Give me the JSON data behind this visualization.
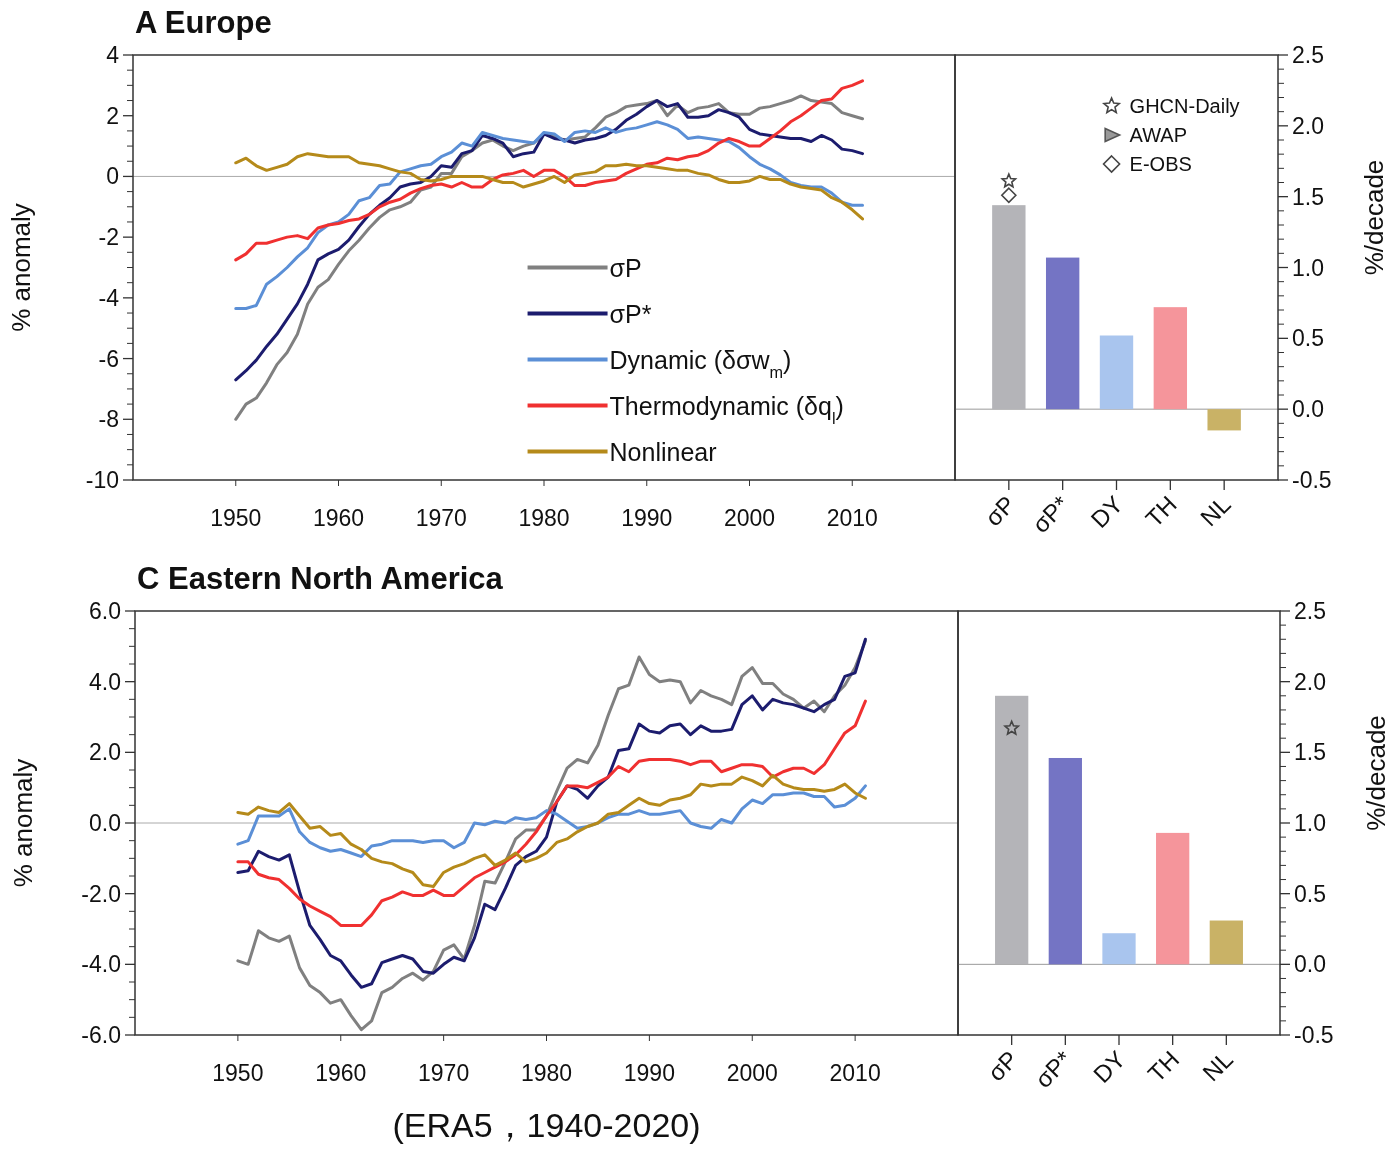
{
  "chart_data": [
    {
      "type": "line",
      "title": "A Europe",
      "ylabel": "% anomaly",
      "xlim": [
        1940,
        2020
      ],
      "xticks": [
        1950,
        1960,
        1970,
        1980,
        1990,
        2000,
        2010
      ],
      "ylim": [
        -10,
        4
      ],
      "yticks": [
        4,
        2,
        0,
        -2,
        -4,
        -6,
        -8,
        -10
      ],
      "legend": "bottom",
      "ref_lines": [
        {
          "axis": "y",
          "value": 0,
          "color": "#aaaaaa"
        }
      ],
      "x": [
        1950,
        1951,
        1952,
        1953,
        1954,
        1955,
        1956,
        1957,
        1958,
        1959,
        1960,
        1961,
        1962,
        1963,
        1964,
        1965,
        1966,
        1967,
        1968,
        1969,
        1970,
        1971,
        1972,
        1973,
        1974,
        1975,
        1976,
        1977,
        1978,
        1979,
        1980,
        1981,
        1982,
        1983,
        1984,
        1985,
        1986,
        1987,
        1988,
        1989,
        1990,
        1991,
        1992,
        1993,
        1994,
        1995,
        1996,
        1997,
        1998,
        1999,
        2000,
        2001,
        2002,
        2003,
        2004,
        2005,
        2006,
        2007,
        2008,
        2009,
        2010,
        2011
      ],
      "series": [
        {
          "name": "σP",
          "color": "#808080",
          "values": [
            -8.0,
            -7.5,
            -7.3,
            -6.8,
            -6.2,
            -5.8,
            -5.2,
            -4.2,
            -3.65,
            -3.4,
            -2.9,
            -2.45,
            -2.1,
            -1.7,
            -1.35,
            -1.1,
            -1.0,
            -0.85,
            -0.45,
            -0.35,
            0.1,
            0.1,
            0.65,
            0.85,
            1.1,
            1.2,
            1.0,
            0.85,
            1.0,
            1.1,
            1.4,
            1.3,
            1.2,
            1.25,
            1.3,
            1.6,
            1.95,
            2.1,
            2.3,
            2.35,
            2.4,
            2.5,
            2.0,
            2.35,
            2.1,
            2.25,
            2.3,
            2.4,
            2.1,
            2.05,
            2.05,
            2.25,
            2.3,
            2.4,
            2.5,
            2.65,
            2.5,
            2.45,
            2.4,
            2.1,
            2.0,
            1.9
          ]
        },
        {
          "name": "σP*",
          "color": "#1c1c6e",
          "values": [
            -6.7,
            -6.4,
            -6.05,
            -5.6,
            -5.2,
            -4.7,
            -4.2,
            -3.55,
            -2.75,
            -2.55,
            -2.4,
            -2.1,
            -1.65,
            -1.25,
            -0.95,
            -0.7,
            -0.35,
            -0.25,
            -0.2,
            0,
            0.35,
            0.3,
            0.75,
            0.85,
            1.35,
            1.25,
            1.1,
            0.65,
            0.75,
            0.8,
            1.4,
            1.25,
            1.2,
            1.1,
            1.2,
            1.25,
            1.35,
            1.55,
            1.85,
            2.05,
            2.3,
            2.5,
            2.3,
            2.4,
            1.95,
            1.95,
            2.0,
            2.2,
            2.1,
            1.95,
            1.55,
            1.4,
            1.35,
            1.3,
            1.25,
            1.25,
            1.15,
            1.35,
            1.2,
            0.9,
            0.85,
            0.75
          ]
        },
        {
          "name": "Dynamic (δσw$_{m}$)",
          "color": "#5b8fd6",
          "values": [
            -4.35,
            -4.35,
            -4.25,
            -3.55,
            -3.3,
            -3.0,
            -2.65,
            -2.35,
            -1.85,
            -1.6,
            -1.5,
            -1.25,
            -0.8,
            -0.7,
            -0.3,
            -0.25,
            0.15,
            0.25,
            0.35,
            0.4,
            0.65,
            0.8,
            1.1,
            1.0,
            1.45,
            1.35,
            1.25,
            1.2,
            1.15,
            1.1,
            1.45,
            1.4,
            1.15,
            1.45,
            1.5,
            1.45,
            1.6,
            1.45,
            1.55,
            1.6,
            1.7,
            1.8,
            1.7,
            1.55,
            1.25,
            1.3,
            1.25,
            1.2,
            1.15,
            0.95,
            0.65,
            0.4,
            0.25,
            0.05,
            -0.2,
            -0.3,
            -0.35,
            -0.35,
            -0.55,
            -0.85,
            -0.95,
            -0.95
          ]
        },
        {
          "name": "Thermodynamic (δq$_{l}$)",
          "color": "#f03030",
          "values": [
            -2.75,
            -2.55,
            -2.2,
            -2.2,
            -2.1,
            -2.0,
            -1.95,
            -2.05,
            -1.7,
            -1.6,
            -1.55,
            -1.45,
            -1.4,
            -1.25,
            -1.0,
            -0.85,
            -0.75,
            -0.55,
            -0.4,
            -0.3,
            -0.25,
            -0.35,
            -0.2,
            -0.35,
            -0.35,
            -0.1,
            0.05,
            0.1,
            0.2,
            0,
            0.2,
            0.2,
            0,
            -0.3,
            -0.3,
            -0.2,
            -0.15,
            -0.1,
            0.1,
            0.25,
            0.4,
            0.45,
            0.6,
            0.55,
            0.65,
            0.7,
            0.85,
            1.1,
            1.25,
            1.15,
            1.0,
            1.0,
            1.25,
            1.5,
            1.8,
            2.0,
            2.25,
            2.5,
            2.55,
            2.9,
            3.0,
            3.15
          ]
        },
        {
          "name": "Nonlinear",
          "color": "#b58a1a",
          "values": [
            0.45,
            0.6,
            0.35,
            0.2,
            0.3,
            0.4,
            0.65,
            0.75,
            0.7,
            0.65,
            0.65,
            0.65,
            0.45,
            0.4,
            0.35,
            0.25,
            0.15,
            0.1,
            -0.1,
            -0.15,
            -0.1,
            0,
            0,
            0,
            0,
            -0.1,
            -0.2,
            -0.2,
            -0.35,
            -0.25,
            -0.15,
            0,
            -0.2,
            0.05,
            0.1,
            0.15,
            0.35,
            0.35,
            0.4,
            0.35,
            0.35,
            0.3,
            0.25,
            0.2,
            0.2,
            0.1,
            0.05,
            -0.1,
            -0.2,
            -0.2,
            -0.15,
            0,
            -0.1,
            -0.1,
            -0.25,
            -0.35,
            -0.4,
            -0.45,
            -0.7,
            -0.85,
            -1.1,
            -1.4
          ]
        }
      ]
    },
    {
      "type": "bar",
      "categories": [
        "σP",
        "σP*",
        "DY",
        "TH",
        "NL"
      ],
      "y2lim": [
        -0.5,
        2.5
      ],
      "y2ticks": [
        {
          "value": 2.5,
          "label": "2.5"
        },
        {
          "value": 2,
          "label": "2.0"
        },
        {
          "value": 1.5,
          "label": "1.5"
        },
        {
          "value": 1,
          "label": "1.0"
        },
        {
          "value": 0.5,
          "label": "0.5"
        },
        {
          "value": 0,
          "label": "0.0"
        },
        {
          "value": -0.5,
          "label": "-0.5"
        }
      ],
      "y2label": "%/decade",
      "legend": "top right",
      "ref_lines": [
        {
          "axis": "y2",
          "value": 0,
          "color": "#999999"
        }
      ],
      "series": [
        {
          "axis": "y2",
          "values": [
            1.44,
            1.07,
            0.52,
            0.72,
            -0.15
          ],
          "colors": [
            "#b4b4b8",
            "#7474c4",
            "#a9c5ee",
            "#f5959b",
            "#c9b266"
          ]
        },
        {
          "type": "scatter",
          "name": "GHCN-Daily",
          "axis": "y2",
          "marker": "star",
          "color": "#444444",
          "x": [
            "σP"
          ],
          "values": [
            1.61
          ]
        },
        {
          "type": "scatter",
          "name": "AWAP",
          "axis": "y2",
          "marker": "triangle",
          "color": "#555555",
          "values": [
            null,
            null,
            null,
            null,
            null
          ]
        },
        {
          "type": "scatter",
          "name": "E-OBS",
          "axis": "y2",
          "marker": "diamond",
          "color": "#444444",
          "x": [
            "σP"
          ],
          "values": [
            1.51
          ]
        }
      ]
    },
    {
      "type": "line",
      "title": "C Eastern North America",
      "ylabel": "% anomaly",
      "xlim": [
        1940,
        2020
      ],
      "xticks": [
        1950,
        1960,
        1970,
        1980,
        1990,
        2000,
        2010
      ],
      "ylim": [
        -6,
        6
      ],
      "yticks": [
        {
          "value": 6,
          "label": "6.0"
        },
        {
          "value": 4,
          "label": "4.0"
        },
        {
          "value": 2,
          "label": "2.0"
        },
        {
          "value": 0,
          "label": "0.0"
        },
        {
          "value": -2,
          "label": "-2.0"
        },
        {
          "value": -4,
          "label": "-4.0"
        },
        {
          "value": -6,
          "label": "-6.0"
        }
      ],
      "annotations": [
        "(ERA5，1940-2020)"
      ],
      "ref_lines": [
        {
          "axis": "y",
          "value": 0,
          "color": "#aaaaaa"
        }
      ],
      "x": [
        1950,
        1951,
        1952,
        1953,
        1954,
        1955,
        1956,
        1957,
        1958,
        1959,
        1960,
        1961,
        1962,
        1963,
        1964,
        1965,
        1966,
        1967,
        1968,
        1969,
        1970,
        1971,
        1972,
        1973,
        1974,
        1975,
        1976,
        1977,
        1978,
        1979,
        1980,
        1981,
        1982,
        1983,
        1984,
        1985,
        1986,
        1987,
        1988,
        1989,
        1990,
        1991,
        1992,
        1993,
        1994,
        1995,
        1996,
        1997,
        1998,
        1999,
        2000,
        2001,
        2002,
        2003,
        2004,
        2005,
        2006,
        2007,
        2008,
        2009,
        2010,
        2011
      ],
      "series": [
        {
          "color": "#808080",
          "values": [
            -3.9,
            -4.0,
            -3.05,
            -3.25,
            -3.35,
            -3.2,
            -4.1,
            -4.6,
            -4.8,
            -5.1,
            -5.0,
            -5.45,
            -5.85,
            -5.6,
            -4.8,
            -4.65,
            -4.4,
            -4.25,
            -4.45,
            -4.2,
            -3.6,
            -3.45,
            -3.85,
            -2.9,
            -1.65,
            -1.7,
            -1.1,
            -0.45,
            -0.2,
            -0.2,
            0.2,
            0.9,
            1.55,
            1.8,
            1.7,
            2.2,
            3.05,
            3.8,
            3.9,
            4.7,
            4.2,
            4.0,
            4.05,
            4.0,
            3.4,
            3.75,
            3.6,
            3.5,
            3.35,
            4.15,
            4.4,
            3.95,
            3.95,
            3.65,
            3.5,
            3.25,
            3.45,
            3.15,
            3.6,
            3.9,
            4.4,
            5.15
          ]
        },
        {
          "color": "#1c1c6e",
          "values": [
            -1.4,
            -1.35,
            -0.8,
            -0.95,
            -1.05,
            -0.9,
            -1.95,
            -2.9,
            -3.3,
            -3.75,
            -3.9,
            -4.3,
            -4.65,
            -4.55,
            -3.95,
            -3.85,
            -3.75,
            -3.85,
            -4.2,
            -4.25,
            -4.0,
            -3.8,
            -3.9,
            -3.25,
            -2.3,
            -2.45,
            -1.85,
            -1.2,
            -0.95,
            -0.8,
            -0.4,
            0.6,
            1.05,
            0.95,
            0.7,
            1.05,
            1.3,
            2.05,
            2.1,
            2.8,
            2.6,
            2.55,
            2.75,
            2.8,
            2.5,
            2.75,
            2.6,
            2.6,
            2.65,
            3.35,
            3.6,
            3.2,
            3.5,
            3.4,
            3.35,
            3.25,
            3.15,
            3.35,
            3.5,
            4.15,
            4.25,
            5.2
          ]
        },
        {
          "color": "#5b8fd6",
          "values": [
            -0.6,
            -0.5,
            0.2,
            0.2,
            0.2,
            0.4,
            -0.25,
            -0.55,
            -0.7,
            -0.8,
            -0.75,
            -0.85,
            -0.95,
            -0.65,
            -0.6,
            -0.5,
            -0.5,
            -0.5,
            -0.55,
            -0.5,
            -0.5,
            -0.7,
            -0.55,
            0,
            -0.05,
            0.05,
            0,
            0.15,
            0.1,
            0.15,
            0.35,
            0.25,
            0.05,
            -0.15,
            -0.1,
            0,
            0.15,
            0.25,
            0.25,
            0.35,
            0.25,
            0.25,
            0.3,
            0.35,
            0,
            -0.1,
            -0.15,
            0.1,
            0,
            0.4,
            0.65,
            0.55,
            0.8,
            0.8,
            0.85,
            0.85,
            0.75,
            0.75,
            0.45,
            0.5,
            0.7,
            1.05
          ]
        },
        {
          "color": "#f03030",
          "values": [
            -1.1,
            -1.1,
            -1.45,
            -1.55,
            -1.6,
            -1.85,
            -2.15,
            -2.35,
            -2.5,
            -2.65,
            -2.9,
            -2.9,
            -2.9,
            -2.6,
            -2.2,
            -2.1,
            -1.95,
            -2.05,
            -2.05,
            -1.9,
            -2.05,
            -2.05,
            -1.8,
            -1.55,
            -1.4,
            -1.25,
            -1.1,
            -0.9,
            -0.6,
            -0.25,
            0.2,
            0.6,
            1.05,
            1.05,
            1.0,
            1.15,
            1.3,
            1.6,
            1.45,
            1.75,
            1.8,
            1.8,
            1.8,
            1.75,
            1.65,
            1.75,
            1.75,
            1.45,
            1.55,
            1.65,
            1.65,
            1.6,
            1.3,
            1.45,
            1.55,
            1.55,
            1.4,
            1.65,
            2.1,
            2.55,
            2.75,
            3.45
          ]
        },
        {
          "color": "#b58a1a",
          "values": [
            0.3,
            0.25,
            0.45,
            0.35,
            0.3,
            0.55,
            0.2,
            -0.15,
            -0.1,
            -0.35,
            -0.3,
            -0.6,
            -0.75,
            -1.0,
            -1.1,
            -1.15,
            -1.3,
            -1.4,
            -1.75,
            -1.8,
            -1.4,
            -1.25,
            -1.15,
            -1.0,
            -0.9,
            -1.2,
            -1.05,
            -0.85,
            -1.1,
            -1.0,
            -0.85,
            -0.55,
            -0.45,
            -0.25,
            -0.1,
            0,
            0.25,
            0.3,
            0.5,
            0.7,
            0.55,
            0.5,
            0.65,
            0.7,
            0.8,
            1.1,
            1.05,
            1.1,
            1.1,
            1.3,
            1.2,
            1.05,
            1.35,
            1.1,
            1.0,
            0.95,
            0.95,
            0.9,
            0.95,
            1.1,
            0.85,
            0.7
          ]
        }
      ]
    },
    {
      "type": "bar",
      "categories": [
        "σP",
        "σP*",
        "DY",
        "TH",
        "NL"
      ],
      "y2lim": [
        -0.5,
        2.5
      ],
      "y2ticks": [
        {
          "value": 2.5,
          "label": "2.5"
        },
        {
          "value": 2,
          "label": "2.0"
        },
        {
          "value": 1.5,
          "label": "1.5"
        },
        {
          "value": 1,
          "label": "1.0"
        },
        {
          "value": 0.5,
          "label": "0.5"
        },
        {
          "value": 0,
          "label": "0.0"
        },
        {
          "value": -0.5,
          "label": "-0.5"
        }
      ],
      "y2label": "%/decade",
      "ref_lines": [
        {
          "axis": "y2",
          "value": 0,
          "color": "#999999"
        }
      ],
      "series": [
        {
          "axis": "y2",
          "values": [
            1.9,
            1.46,
            0.22,
            0.93,
            0.31
          ],
          "colors": [
            "#b4b4b8",
            "#7474c4",
            "#a9c5ee",
            "#f5959b",
            "#c9b266"
          ]
        },
        {
          "type": "scatter",
          "axis": "y2",
          "marker": "star",
          "color": "#444444",
          "x": [
            "σP"
          ],
          "values": [
            1.67
          ]
        }
      ]
    }
  ]
}
